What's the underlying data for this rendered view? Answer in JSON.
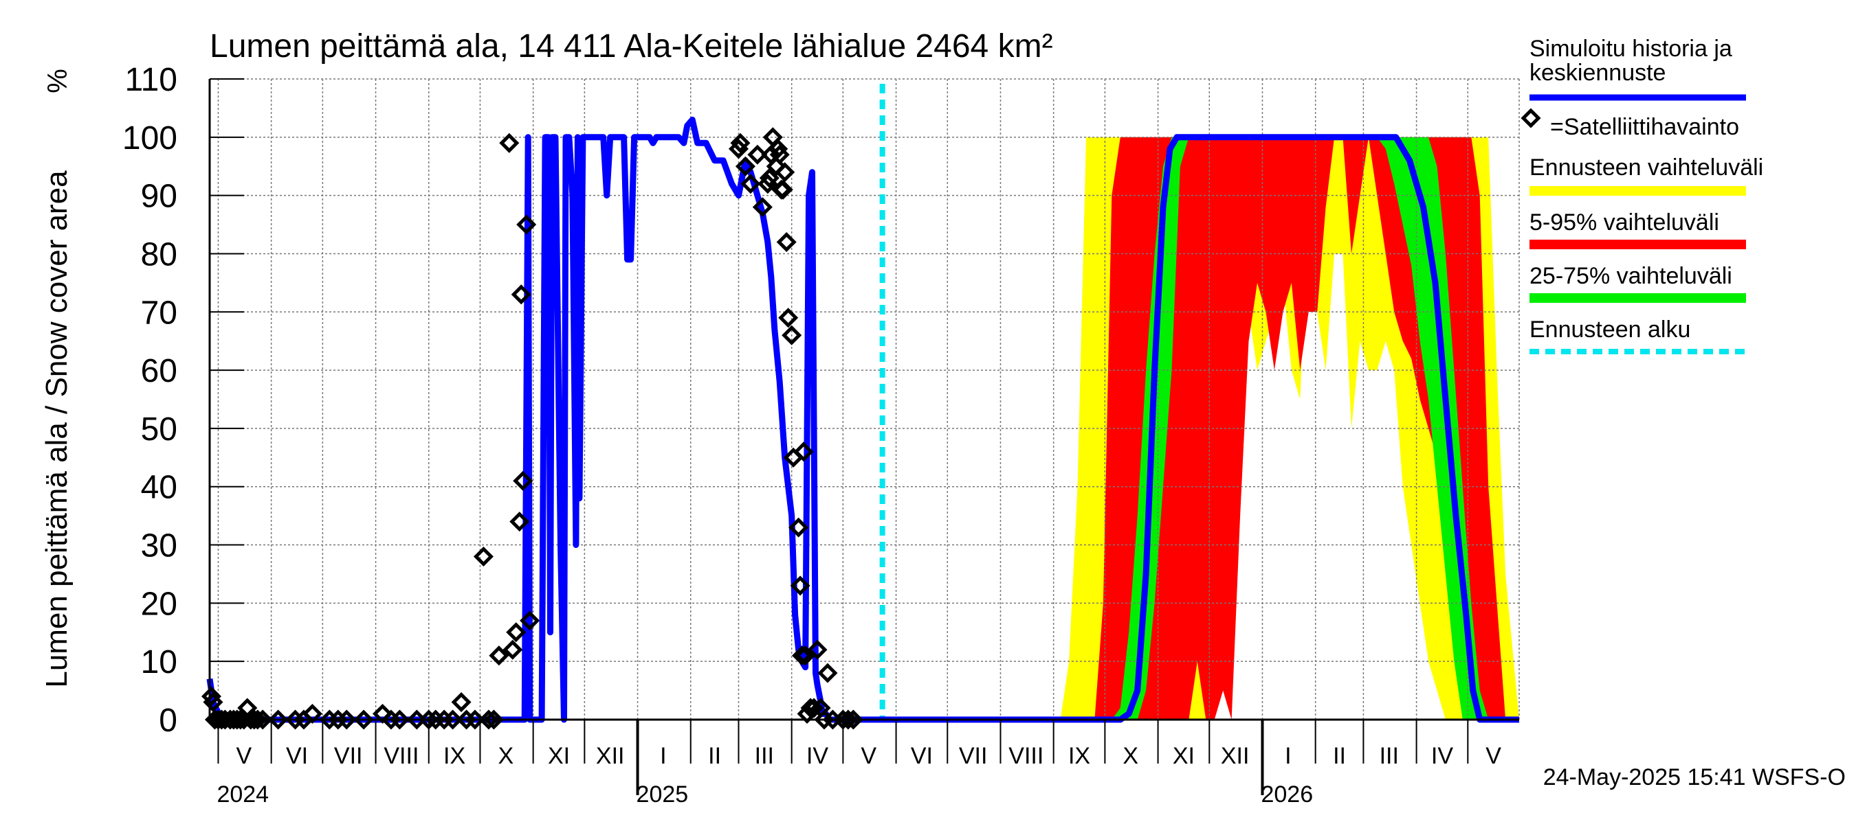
{
  "chart_data": {
    "type": "area",
    "title": "Lumen peittämä ala, 14 411 Ala-Keitele lähialue 2464 km²",
    "ylabel": "Lumen peittämä ala / Snow cover area",
    "yunit": "%",
    "ylim": [
      0,
      110
    ],
    "yticks": [
      0,
      10,
      20,
      30,
      40,
      50,
      60,
      70,
      80,
      90,
      100,
      110
    ],
    "xlim": [
      "2024-04-26",
      "2026-05-31"
    ],
    "grid": true,
    "legend_position": "right",
    "month_labels": [
      {
        "label": "V",
        "date": "2024-05-16"
      },
      {
        "label": "VI",
        "date": "2024-06-16"
      },
      {
        "label": "VII",
        "date": "2024-07-16"
      },
      {
        "label": "VIII",
        "date": "2024-08-16"
      },
      {
        "label": "IX",
        "date": "2024-09-16"
      },
      {
        "label": "X",
        "date": "2024-10-16"
      },
      {
        "label": "XI",
        "date": "2024-11-16"
      },
      {
        "label": "XII",
        "date": "2024-12-16"
      },
      {
        "label": "I",
        "date": "2025-01-16"
      },
      {
        "label": "II",
        "date": "2025-02-15"
      },
      {
        "label": "III",
        "date": "2025-03-16"
      },
      {
        "label": "IV",
        "date": "2025-04-16"
      },
      {
        "label": "V",
        "date": "2025-05-16"
      },
      {
        "label": "VI",
        "date": "2025-06-16"
      },
      {
        "label": "VII",
        "date": "2025-07-16"
      },
      {
        "label": "VIII",
        "date": "2025-08-16"
      },
      {
        "label": "IX",
        "date": "2025-09-16"
      },
      {
        "label": "X",
        "date": "2025-10-16"
      },
      {
        "label": "XI",
        "date": "2025-11-16"
      },
      {
        "label": "XII",
        "date": "2025-12-16"
      },
      {
        "label": "I",
        "date": "2026-01-16"
      },
      {
        "label": "II",
        "date": "2026-02-15"
      },
      {
        "label": "III",
        "date": "2026-03-16"
      },
      {
        "label": "IV",
        "date": "2026-04-16"
      },
      {
        "label": "V",
        "date": "2026-05-16"
      }
    ],
    "year_labels": [
      {
        "label": "2024",
        "date": "2024-05-01"
      },
      {
        "label": "2025",
        "date": "2025-01-01"
      },
      {
        "label": "2026",
        "date": "2026-01-01"
      }
    ],
    "year_boundaries": [
      "2025-01-01",
      "2026-01-01"
    ],
    "forecast_start": "2025-05-24",
    "legend": [
      {
        "key": "history",
        "label_lines": [
          "Simuloitu historia ja",
          "keskiennuste"
        ],
        "color": "#0000ff",
        "style": "line"
      },
      {
        "key": "satellite",
        "label_lines": [
          "=Satelliittihavainto"
        ],
        "color": "#000000",
        "style": "diamond"
      },
      {
        "key": "range",
        "label_lines": [
          "Ennusteen vaihteluväli"
        ],
        "color": "#ffff00",
        "style": "band"
      },
      {
        "key": "p5_95",
        "label_lines": [
          "5-95% vaihteluväli"
        ],
        "color": "#ff0000",
        "style": "band"
      },
      {
        "key": "p25_75",
        "label_lines": [
          "25-75% vaihteluväli"
        ],
        "color": "#00ee00",
        "style": "band"
      },
      {
        "key": "forecast_start",
        "label_lines": [
          "Ennusteen alku"
        ],
        "color": "#00e5ee",
        "style": "dashed"
      }
    ],
    "series": [
      {
        "name": "Simuloitu historia ja keskiennuste",
        "color": "#0000ff",
        "x": [
          "2024-04-26",
          "2024-04-28",
          "2024-05-03",
          "2024-10-20",
          "2024-10-27",
          "2024-10-29",
          "2024-10-30",
          "2024-11-02",
          "2024-11-06",
          "2024-11-08",
          "2024-11-10",
          "2024-11-11",
          "2024-11-12",
          "2024-11-14",
          "2024-11-17",
          "2024-11-19",
          "2024-11-20",
          "2024-11-22",
          "2024-11-24",
          "2024-11-26",
          "2024-11-27",
          "2024-11-28",
          "2024-11-30",
          "2024-12-02",
          "2024-12-03",
          "2024-12-05",
          "2024-12-08",
          "2024-12-10",
          "2024-12-12",
          "2024-12-14",
          "2024-12-16",
          "2024-12-18",
          "2024-12-21",
          "2024-12-23",
          "2024-12-24",
          "2024-12-26",
          "2024-12-28",
          "2024-12-30",
          "2025-01-03",
          "2025-01-05",
          "2025-01-08",
          "2025-01-10",
          "2025-01-12",
          "2025-01-15",
          "2025-01-20",
          "2025-01-25",
          "2025-01-28",
          "2025-01-30",
          "2025-02-02",
          "2025-02-05",
          "2025-02-10",
          "2025-02-15",
          "2025-02-20",
          "2025-02-25",
          "2025-03-01",
          "2025-03-05",
          "2025-03-08",
          "2025-03-10",
          "2025-03-12",
          "2025-03-15",
          "2025-03-18",
          "2025-03-20",
          "2025-03-22",
          "2025-03-25",
          "2025-03-28",
          "2025-04-01",
          "2025-04-03",
          "2025-04-05",
          "2025-04-07",
          "2025-04-09",
          "2025-04-11",
          "2025-04-13",
          "2025-04-15",
          "2025-04-16",
          "2025-04-18",
          "2025-04-19",
          "2025-04-21",
          "2025-04-23",
          "2025-04-25",
          "2025-04-28",
          "2025-05-05",
          "2025-05-24",
          "2025-10-10",
          "2025-10-15",
          "2025-10-20",
          "2025-10-25",
          "2025-10-30",
          "2025-11-04",
          "2025-11-08",
          "2025-11-12",
          "2025-11-16",
          "2025-11-20",
          "2026-03-20",
          "2026-03-28",
          "2026-04-05",
          "2026-04-12",
          "2026-04-18",
          "2026-04-24",
          "2026-04-30",
          "2026-05-04",
          "2026-05-08",
          "2026-05-31"
        ],
        "y": [
          7,
          3,
          0,
          0,
          0,
          100,
          0,
          0,
          0,
          100,
          100,
          15,
          100,
          100,
          30,
          0,
          100,
          100,
          90,
          30,
          100,
          38,
          100,
          100,
          100,
          100,
          100,
          100,
          100,
          90,
          100,
          100,
          100,
          100,
          100,
          79,
          79,
          100,
          100,
          100,
          100,
          99,
          100,
          100,
          100,
          100,
          99,
          102,
          103,
          99,
          99,
          96,
          96,
          92,
          90,
          96,
          94,
          92,
          90,
          87,
          82,
          76,
          67,
          58,
          45,
          35,
          18,
          12,
          10,
          9,
          90,
          94,
          8,
          6,
          3,
          1,
          1,
          0,
          0,
          0,
          0,
          0,
          0,
          1,
          5,
          25,
          60,
          88,
          98,
          100,
          100,
          100,
          100,
          96,
          88,
          75,
          55,
          35,
          18,
          5,
          0,
          0
        ]
      },
      {
        "name": "Satelliittihavainto",
        "color": "#000000",
        "x": [
          "2024-04-27",
          "2024-04-28",
          "2024-04-29",
          "2024-05-01",
          "2024-05-03",
          "2024-05-05",
          "2024-05-08",
          "2024-05-10",
          "2024-05-12",
          "2024-05-14",
          "2024-05-16",
          "2024-05-18",
          "2024-05-20",
          "2024-05-22",
          "2024-05-24",
          "2024-05-27",
          "2024-06-05",
          "2024-06-15",
          "2024-06-20",
          "2024-06-25",
          "2024-07-05",
          "2024-07-10",
          "2024-07-15",
          "2024-07-25",
          "2024-08-05",
          "2024-08-10",
          "2024-08-15",
          "2024-08-25",
          "2024-09-01",
          "2024-09-05",
          "2024-09-10",
          "2024-09-15",
          "2024-09-20",
          "2024-09-23",
          "2024-09-28",
          "2024-10-03",
          "2024-10-06",
          "2024-10-09",
          "2024-10-12",
          "2024-10-18",
          "2024-10-20",
          "2024-10-22",
          "2024-10-24",
          "2024-10-25",
          "2024-10-26",
          "2024-10-28",
          "2024-10-30",
          "2025-03-01",
          "2025-03-02",
          "2025-03-05",
          "2025-03-08",
          "2025-03-12",
          "2025-03-15",
          "2025-03-18",
          "2025-03-19",
          "2025-03-20",
          "2025-03-21",
          "2025-03-23",
          "2025-03-24",
          "2025-03-25",
          "2025-03-26",
          "2025-03-27",
          "2025-03-28",
          "2025-03-29",
          "2025-03-30",
          "2025-04-01",
          "2025-04-02",
          "2025-04-05",
          "2025-04-06",
          "2025-04-07",
          "2025-04-08",
          "2025-04-09",
          "2025-04-10",
          "2025-04-12",
          "2025-04-14",
          "2025-04-16",
          "2025-04-18",
          "2025-04-20",
          "2025-04-22",
          "2025-04-25",
          "2025-05-01",
          "2025-05-04",
          "2025-05-07"
        ],
        "y": [
          4,
          3,
          0,
          0,
          0,
          0,
          0,
          0,
          0,
          0,
          0,
          2,
          0,
          0,
          0,
          0,
          0,
          0,
          0,
          1,
          0,
          0,
          0,
          0,
          1,
          0,
          0,
          0,
          0,
          0,
          0,
          0,
          3,
          0,
          0,
          28,
          0,
          0,
          11,
          99,
          12,
          15,
          34,
          73,
          41,
          85,
          17,
          98,
          99,
          95,
          92,
          97,
          88,
          92,
          93,
          97,
          100,
          95,
          98,
          97,
          91,
          91,
          94,
          82,
          69,
          66,
          45,
          33,
          23,
          11,
          46,
          11,
          1,
          2,
          2,
          12,
          2,
          0,
          8,
          0,
          0,
          0,
          0
        ]
      }
    ],
    "bands": {
      "x": [
        "2025-09-05",
        "2025-09-10",
        "2025-09-15",
        "2025-09-20",
        "2025-09-25",
        "2025-09-30",
        "2025-10-05",
        "2025-10-10",
        "2025-10-15",
        "2025-10-20",
        "2025-10-25",
        "2025-10-30",
        "2025-11-04",
        "2025-11-09",
        "2025-11-14",
        "2025-11-19",
        "2025-11-24",
        "2025-11-29",
        "2025-12-04",
        "2025-12-09",
        "2025-12-14",
        "2025-12-19",
        "2025-12-24",
        "2025-12-29",
        "2026-01-03",
        "2026-01-08",
        "2026-01-13",
        "2026-01-18",
        "2026-01-23",
        "2026-01-28",
        "2026-02-02",
        "2026-02-07",
        "2026-02-12",
        "2026-02-17",
        "2026-02-22",
        "2026-02-27",
        "2026-03-04",
        "2026-03-09",
        "2026-03-14",
        "2026-03-19",
        "2026-03-24",
        "2026-03-29",
        "2026-04-03",
        "2026-04-08",
        "2026-04-13",
        "2026-04-18",
        "2026-04-23",
        "2026-04-28",
        "2026-05-03",
        "2026-05-08",
        "2026-05-13",
        "2026-05-18",
        "2026-05-23",
        "2026-05-31"
      ],
      "range_lower": [
        0,
        0,
        0,
        0,
        0,
        0,
        0,
        0,
        0,
        0,
        0,
        0,
        0,
        0,
        0,
        0,
        0,
        0,
        90,
        60,
        75,
        88,
        70,
        60,
        65,
        70,
        75,
        60,
        55,
        90,
        70,
        60,
        80,
        80,
        50,
        65,
        60,
        60,
        65,
        60,
        40,
        30,
        20,
        10,
        5,
        0,
        0,
        0,
        0,
        0,
        0,
        0,
        0,
        0
      ],
      "range_upper": [
        0,
        10,
        40,
        100,
        100,
        100,
        100,
        100,
        100,
        100,
        100,
        100,
        100,
        100,
        100,
        100,
        100,
        100,
        100,
        100,
        100,
        100,
        100,
        100,
        100,
        100,
        100,
        100,
        100,
        100,
        100,
        100,
        100,
        100,
        100,
        100,
        100,
        100,
        100,
        100,
        100,
        100,
        100,
        100,
        100,
        100,
        100,
        100,
        100,
        100,
        100,
        60,
        25,
        0
      ],
      "p5_95_lower": [
        0,
        0,
        0,
        0,
        0,
        0,
        0,
        0,
        0,
        0,
        0,
        0,
        0,
        0,
        0,
        0,
        10,
        0,
        0,
        5,
        0,
        35,
        65,
        75,
        70,
        60,
        70,
        75,
        60,
        70,
        70,
        88,
        100,
        100,
        80,
        90,
        100,
        90,
        80,
        70,
        65,
        62,
        55,
        50,
        45,
        30,
        15,
        5,
        0,
        0,
        0,
        0,
        0,
        0
      ],
      "p5_95_upper": [
        0,
        0,
        0,
        0,
        0,
        20,
        90,
        100,
        100,
        100,
        100,
        100,
        100,
        100,
        100,
        100,
        100,
        100,
        100,
        100,
        100,
        100,
        100,
        100,
        100,
        100,
        100,
        100,
        100,
        100,
        100,
        100,
        100,
        100,
        100,
        100,
        100,
        100,
        100,
        100,
        100,
        100,
        100,
        100,
        100,
        100,
        100,
        100,
        100,
        90,
        40,
        20,
        0,
        0
      ],
      "p25_75_lower": [
        0,
        0,
        0,
        0,
        0,
        0,
        0,
        0,
        0,
        0,
        5,
        20,
        40,
        60,
        95,
        100,
        100,
        100,
        100,
        100,
        100,
        100,
        100,
        100,
        100,
        100,
        100,
        100,
        100,
        100,
        100,
        100,
        100,
        100,
        100,
        100,
        100,
        100,
        98,
        92,
        85,
        78,
        65,
        55,
        40,
        25,
        10,
        0,
        0,
        0,
        0,
        0,
        0,
        0
      ],
      "p25_75_upper": [
        0,
        0,
        0,
        0,
        0,
        0,
        0,
        2,
        15,
        35,
        60,
        80,
        95,
        100,
        100,
        100,
        100,
        100,
        100,
        100,
        100,
        100,
        100,
        100,
        100,
        100,
        100,
        100,
        100,
        100,
        100,
        100,
        100,
        100,
        100,
        100,
        100,
        100,
        100,
        100,
        100,
        100,
        100,
        100,
        95,
        80,
        60,
        40,
        20,
        5,
        0,
        0,
        0,
        0
      ]
    }
  },
  "footer": {
    "timestamp": "24-May-2025 15:41 WSFS-O"
  }
}
